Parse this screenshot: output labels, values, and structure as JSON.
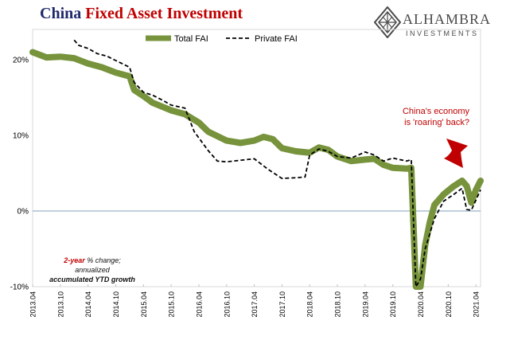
{
  "title": {
    "part1": "China",
    "part2": "Fixed Asset Investment"
  },
  "logo": {
    "name": "ALHAMBRA",
    "sub": "INVESTMENTS"
  },
  "colors": {
    "total": "#77933c",
    "private": "#000000",
    "zero_line": "#7f9fbf",
    "title_dark": "#1f2a6b",
    "accent_red": "#c00000"
  },
  "annotation": {
    "line1": "China's economy",
    "line2": "is 'roaring' back?"
  },
  "footnote": {
    "line1_highlight": "2-year",
    "line1_rest": " % change;",
    "line2": "annualized",
    "line3": "accumulated YTD growth"
  },
  "chart_data": {
    "type": "line",
    "legend": {
      "placement": "top-center",
      "entries": [
        "Total FAI",
        "Private FAI"
      ]
    },
    "y_ticks": [
      "20%",
      "10%",
      "0%",
      "-10%"
    ],
    "ylim": [
      -10,
      24
    ],
    "x_ticks": [
      "2013.04",
      "2013.10",
      "2014.04",
      "2014.10",
      "2015.04",
      "2015.10",
      "2016.04",
      "2016.10",
      "2017.04",
      "2017.10",
      "2018.04",
      "2018.10",
      "2019.04",
      "2019.10",
      "2020.04",
      "2020.10",
      "2021.04"
    ],
    "series": [
      {
        "name": "Total FAI",
        "points": [
          [
            "2013.04",
            21.0
          ],
          [
            "2013.07",
            20.3
          ],
          [
            "2013.10",
            20.4
          ],
          [
            "2014.01",
            20.2
          ],
          [
            "2014.04",
            19.5
          ],
          [
            "2014.07",
            19.0
          ],
          [
            "2014.10",
            18.3
          ],
          [
            "2015.01",
            17.8
          ],
          [
            "2015.02",
            16.0
          ],
          [
            "2015.04",
            15.2
          ],
          [
            "2015.06",
            14.3
          ],
          [
            "2015.10",
            13.3
          ],
          [
            "2016.01",
            12.8
          ],
          [
            "2016.04",
            11.7
          ],
          [
            "2016.06",
            10.5
          ],
          [
            "2016.10",
            9.3
          ],
          [
            "2017.01",
            9.0
          ],
          [
            "2017.04",
            9.3
          ],
          [
            "2017.06",
            9.8
          ],
          [
            "2017.08",
            9.5
          ],
          [
            "2017.10",
            8.3
          ],
          [
            "2018.01",
            7.9
          ],
          [
            "2018.04",
            7.7
          ],
          [
            "2018.06",
            8.4
          ],
          [
            "2018.08",
            8.1
          ],
          [
            "2018.10",
            7.2
          ],
          [
            "2019.01",
            6.6
          ],
          [
            "2019.04",
            6.8
          ],
          [
            "2019.06",
            6.9
          ],
          [
            "2019.08",
            6.1
          ],
          [
            "2019.10",
            5.7
          ],
          [
            "2020.01",
            5.6
          ],
          [
            "2020.02",
            5.7
          ],
          [
            "2020.03",
            -10.0
          ],
          [
            "2020.04",
            -10.0
          ],
          [
            "2020.05",
            -4.5
          ],
          [
            "2020.06",
            -1.5
          ],
          [
            "2020.07",
            0.8
          ],
          [
            "2020.09",
            2.2
          ],
          [
            "2020.11",
            3.2
          ],
          [
            "2021.01",
            4.0
          ],
          [
            "2021.02",
            3.3
          ],
          [
            "2021.03",
            1.1
          ],
          [
            "2021.04",
            2.8
          ],
          [
            "2021.05",
            4.0
          ]
        ]
      },
      {
        "name": "Private FAI",
        "points": [
          [
            "2014.01",
            22.6
          ],
          [
            "2014.02",
            21.9
          ],
          [
            "2014.04",
            21.5
          ],
          [
            "2014.06",
            20.8
          ],
          [
            "2014.08",
            20.5
          ],
          [
            "2014.10",
            19.9
          ],
          [
            "2015.01",
            19.0
          ],
          [
            "2015.02",
            17.0
          ],
          [
            "2015.04",
            15.7
          ],
          [
            "2015.06",
            15.3
          ],
          [
            "2015.08",
            14.7
          ],
          [
            "2015.10",
            14.0
          ],
          [
            "2016.01",
            13.6
          ],
          [
            "2016.03",
            10.5
          ],
          [
            "2016.06",
            8.0
          ],
          [
            "2016.08",
            6.6
          ],
          [
            "2016.10",
            6.5
          ],
          [
            "2017.01",
            6.7
          ],
          [
            "2017.04",
            6.9
          ],
          [
            "2017.07",
            5.5
          ],
          [
            "2017.10",
            4.3
          ],
          [
            "2018.01",
            4.4
          ],
          [
            "2018.03",
            4.5
          ],
          [
            "2018.04",
            7.4
          ],
          [
            "2018.06",
            8.2
          ],
          [
            "2018.08",
            7.9
          ],
          [
            "2018.10",
            7.2
          ],
          [
            "2019.01",
            7.0
          ],
          [
            "2019.04",
            7.8
          ],
          [
            "2019.06",
            7.4
          ],
          [
            "2019.08",
            6.6
          ],
          [
            "2019.10",
            7.0
          ],
          [
            "2020.01",
            6.6
          ],
          [
            "2020.02",
            6.8
          ],
          [
            "2020.03",
            -10.0
          ],
          [
            "2020.04",
            -9.0
          ],
          [
            "2020.05",
            -5.0
          ],
          [
            "2020.06",
            -3.0
          ],
          [
            "2020.07",
            -1.0
          ],
          [
            "2020.09",
            1.3
          ],
          [
            "2020.11",
            2.1
          ],
          [
            "2021.01",
            3.0
          ],
          [
            "2021.02",
            0.2
          ],
          [
            "2021.03",
            0.1
          ],
          [
            "2021.05",
            2.8
          ]
        ]
      }
    ]
  }
}
